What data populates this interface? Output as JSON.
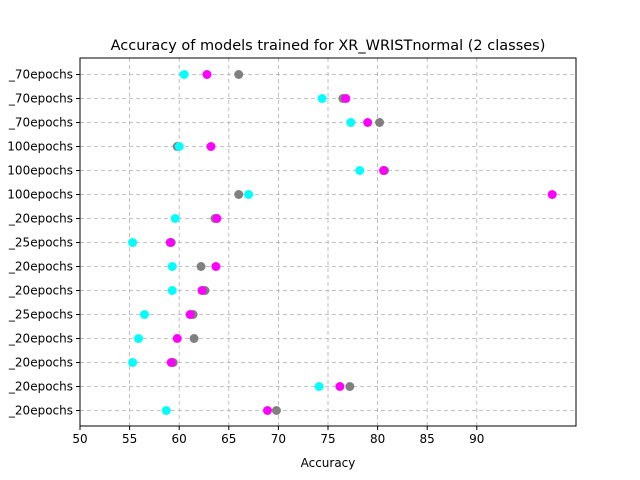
{
  "chart_data": {
    "type": "scatter",
    "title": "Accuracy of models trained for XR_WRISTnormal (2 classes)",
    "xlabel": "Accuracy",
    "ylabel": "",
    "xlim": [
      50,
      100
    ],
    "xticks": [
      50,
      55,
      60,
      65,
      70,
      75,
      80,
      85,
      90
    ],
    "grid": true,
    "categories": [
      "_70epochs",
      "_70epochs",
      "_70epochs",
      "100epochs",
      "100epochs",
      "100epochs",
      "_20epochs",
      "_25epochs",
      "_20epochs",
      "_20epochs",
      "_25epochs",
      "_20epochs",
      "_20epochs",
      "_20epochs",
      "_20epochs"
    ],
    "series": [
      {
        "color": "#808080",
        "values": [
          66.0,
          76.5,
          80.2,
          59.8,
          80.7,
          66.0,
          63.6,
          59.2,
          62.2,
          62.6,
          61.4,
          61.5,
          59.4,
          77.2,
          69.8
        ]
      },
      {
        "color": "#ff00ff",
        "values": [
          62.8,
          76.8,
          79.0,
          63.2,
          80.6,
          97.6,
          63.8,
          59.1,
          63.7,
          62.3,
          61.1,
          59.8,
          59.2,
          76.2,
          68.9
        ]
      },
      {
        "color": "#00ffff",
        "values": [
          60.5,
          74.4,
          77.3,
          60.0,
          78.2,
          67.0,
          59.6,
          55.3,
          59.3,
          59.3,
          56.5,
          55.9,
          55.3,
          74.1,
          58.7
        ]
      }
    ]
  }
}
